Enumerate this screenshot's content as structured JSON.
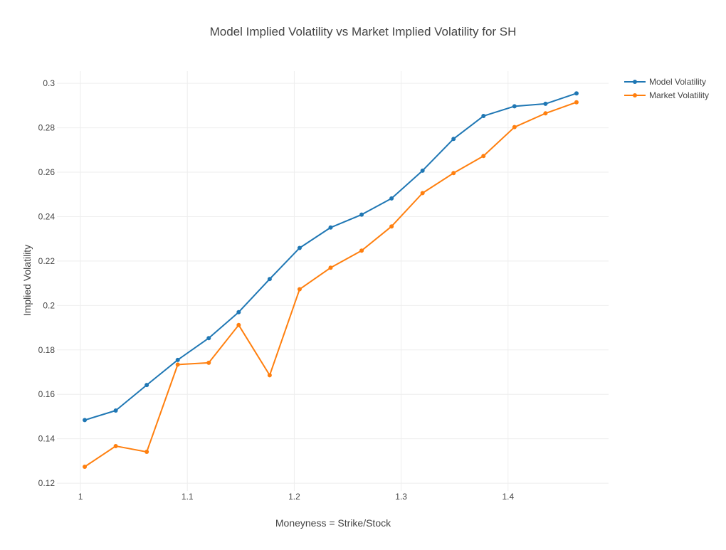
{
  "chart_data": {
    "type": "line",
    "title": "Model Implied Volatility vs Market Implied Volatility for SH",
    "xlabel": "Moneyness = Strike/Stock",
    "ylabel": "Implied Volatility",
    "xlim": [
      0.978,
      1.494
    ],
    "ylim": [
      0.1165,
      0.3055
    ],
    "x_ticks": [
      {
        "value": 1.0,
        "label": "1"
      },
      {
        "value": 1.1,
        "label": "1.1"
      },
      {
        "value": 1.2,
        "label": "1.2"
      },
      {
        "value": 1.3,
        "label": "1.3"
      },
      {
        "value": 1.4,
        "label": "1.4"
      }
    ],
    "y_ticks": [
      {
        "value": 0.12,
        "label": "0.12"
      },
      {
        "value": 0.14,
        "label": "0.14"
      },
      {
        "value": 0.16,
        "label": "0.16"
      },
      {
        "value": 0.18,
        "label": "0.18"
      },
      {
        "value": 0.2,
        "label": "0.2"
      },
      {
        "value": 0.22,
        "label": "0.22"
      },
      {
        "value": 0.24,
        "label": "0.24"
      },
      {
        "value": 0.26,
        "label": "0.26"
      },
      {
        "value": 0.28,
        "label": "0.28"
      },
      {
        "value": 0.3,
        "label": "0.3"
      }
    ],
    "grid": true,
    "legend_position": "top-right",
    "x": [
      1.004,
      1.033,
      1.062,
      1.091,
      1.12,
      1.148,
      1.177,
      1.205,
      1.234,
      1.263,
      1.291,
      1.32,
      1.349,
      1.377,
      1.406,
      1.435,
      1.464
    ],
    "series": [
      {
        "name": "Model Volatility",
        "color": "#1f77b4",
        "values": [
          0.1484,
          0.1527,
          0.1642,
          0.1755,
          0.1853,
          0.197,
          0.2119,
          0.2259,
          0.2351,
          0.2409,
          0.2482,
          0.2607,
          0.275,
          0.2853,
          0.2897,
          0.2908,
          0.2955
        ]
      },
      {
        "name": "Market Volatility",
        "color": "#ff7f0e",
        "values": [
          0.1274,
          0.1367,
          0.1341,
          0.1734,
          0.1742,
          0.1912,
          0.1686,
          0.2073,
          0.217,
          0.2247,
          0.2356,
          0.2506,
          0.2596,
          0.2673,
          0.2803,
          0.2865,
          0.2915
        ]
      }
    ]
  }
}
